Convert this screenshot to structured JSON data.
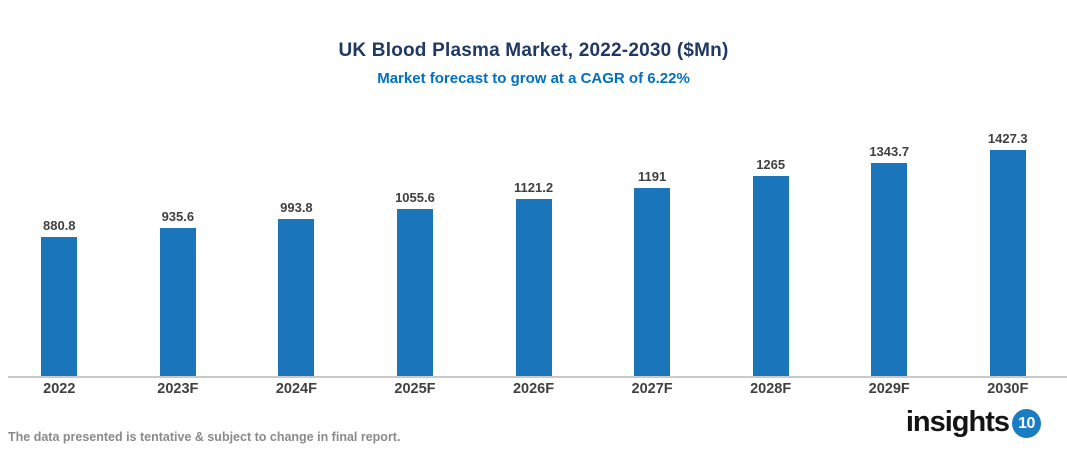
{
  "header": {
    "title": "UK Blood Plasma Market, 2022-2030 ($Mn)",
    "subtitle": "Market forecast to grow at a CAGR of 6.22%",
    "title_color": "#1F3864",
    "subtitle_color": "#0070C0"
  },
  "chart_data": {
    "type": "bar",
    "title": "UK Blood Plasma Market, 2022-2030 ($Mn)",
    "subtitle": "Market forecast to grow at a CAGR of 6.22%",
    "categories": [
      "2022",
      "2023F",
      "2024F",
      "2025F",
      "2026F",
      "2027F",
      "2028F",
      "2029F",
      "2030F"
    ],
    "values": [
      880.8,
      935.6,
      993.8,
      1055.6,
      1121.2,
      1191,
      1265,
      1343.7,
      1427.3
    ],
    "xlabel": "",
    "ylabel": "",
    "ylim": [
      0,
      1500
    ],
    "grid": false,
    "legend": "none",
    "data_labels": "above-bars",
    "bar_color": "#1B75BB",
    "data_label_color": "#404040",
    "axis_label_color": "#404040",
    "baseline_color": "#C9C9C9"
  },
  "footer": {
    "disclaimer": "The data presented is tentative & subject to change in final report.",
    "logo_text": "insights",
    "logo_badge": "10",
    "logo_badge_color": "#1A7DC4"
  }
}
